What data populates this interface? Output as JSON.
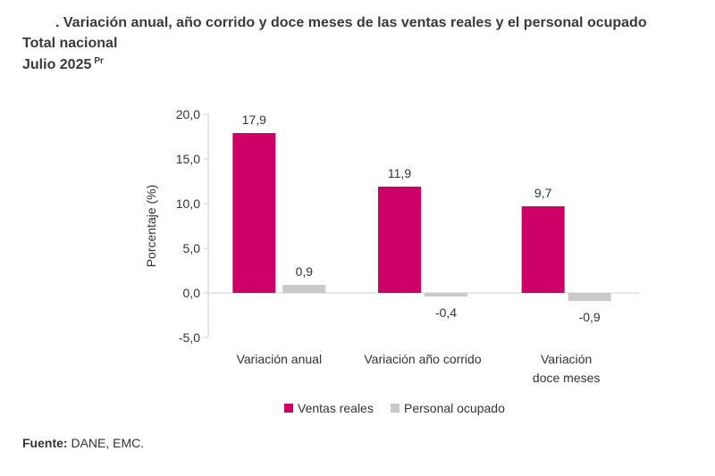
{
  "header": {
    "title": ". Variación anual, año corrido y doce meses de las ventas reales y el personal ocupado",
    "subtitle1": "Total nacional",
    "subtitle2": "Julio 2025",
    "subtitle2_sup": "Pr"
  },
  "source": {
    "label": "Fuente:",
    "text": " DANE, EMC."
  },
  "chart_data": {
    "type": "bar",
    "title": "",
    "xlabel": "",
    "ylabel": "Porcentaje (%)",
    "ylim": [
      -5,
      20
    ],
    "yticks": [
      20,
      15,
      10,
      5,
      0,
      -5
    ],
    "ytick_labels": [
      "20,0",
      "15,0",
      "10,0",
      "5,0",
      "0,0",
      "-5,0"
    ],
    "categories": [
      [
        "Variación anual"
      ],
      [
        "Variación año corrido"
      ],
      [
        "Variación",
        "doce meses"
      ]
    ],
    "series": [
      {
        "name": "Ventas reales",
        "color": "#CC0066",
        "values": [
          17.9,
          11.9,
          9.7
        ],
        "labels": [
          "17,9",
          "11,9",
          "9,7"
        ]
      },
      {
        "name": "Personal ocupado",
        "color": "#C9C9C9",
        "values": [
          0.9,
          -0.4,
          -0.9
        ],
        "labels": [
          "0,9",
          "-0,4",
          "-0,9"
        ]
      }
    ],
    "legend": "bottom",
    "grid": false
  }
}
